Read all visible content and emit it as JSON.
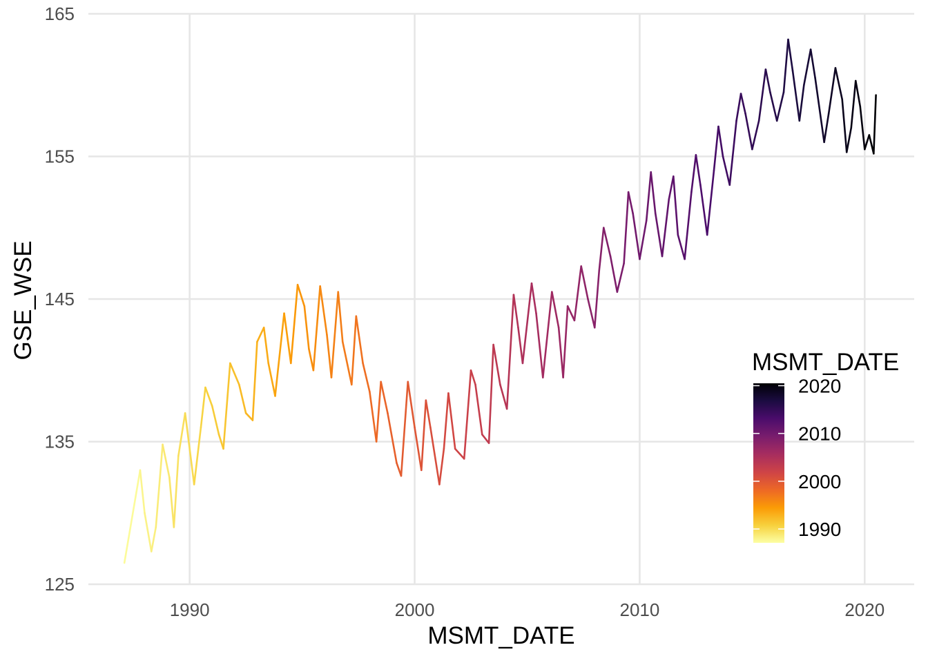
{
  "chart_data": {
    "type": "line",
    "title": "",
    "xlabel": "MSMT_DATE",
    "ylabel": "GSE_WSE",
    "xlim": [
      1985.5,
      2022.2
    ],
    "ylim": [
      125,
      165
    ],
    "x_ticks": [
      1990,
      2000,
      2010,
      2020
    ],
    "y_ticks": [
      125,
      135,
      145,
      155,
      165
    ],
    "x_tick_labels": [
      "1990",
      "2000",
      "2010",
      "2020"
    ],
    "y_tick_labels": [
      "125",
      "135",
      "145",
      "155",
      "165"
    ],
    "grid": true,
    "legend": {
      "title": "MSMT_DATE",
      "type": "colorbar",
      "position": "right",
      "range": [
        1987.1,
        2020.5
      ],
      "ticks": [
        1990,
        2000,
        2010,
        2020
      ],
      "tick_labels": [
        "1990",
        "2000",
        "2010",
        "2020"
      ],
      "colormap": "inferno",
      "colors_low_to_high": [
        "#fcffa4",
        "#f7d13d",
        "#fb9b06",
        "#ed6925",
        "#cf4446",
        "#a52c60",
        "#781c6d",
        "#4a0c6b",
        "#1b0c41",
        "#000004"
      ]
    },
    "series": [
      {
        "name": "GSE_WSE",
        "color_by": "MSMT_DATE",
        "x": [
          1987.1,
          1987.8,
          1988.0,
          1988.3,
          1988.5,
          1988.8,
          1989.1,
          1989.3,
          1989.5,
          1989.8,
          1990.2,
          1990.5,
          1990.7,
          1991.0,
          1991.3,
          1991.5,
          1991.8,
          1992.2,
          1992.5,
          1992.8,
          1993.0,
          1993.3,
          1993.5,
          1993.8,
          1994.2,
          1994.5,
          1994.8,
          1995.1,
          1995.3,
          1995.5,
          1995.8,
          1996.1,
          1996.3,
          1996.6,
          1996.8,
          1997.2,
          1997.4,
          1997.7,
          1998.0,
          1998.3,
          1998.5,
          1998.8,
          1999.2,
          1999.4,
          1999.7,
          2000.0,
          2000.3,
          2000.5,
          2000.7,
          2001.1,
          2001.3,
          2001.5,
          2001.8,
          2002.2,
          2002.5,
          2002.7,
          2003.0,
          2003.3,
          2003.5,
          2003.8,
          2004.1,
          2004.4,
          2004.6,
          2004.8,
          2005.2,
          2005.4,
          2005.7,
          2006.1,
          2006.4,
          2006.6,
          2006.8,
          2007.1,
          2007.4,
          2007.7,
          2008.0,
          2008.2,
          2008.4,
          2008.7,
          2009.0,
          2009.3,
          2009.5,
          2009.7,
          2010.0,
          2010.3,
          2010.5,
          2010.7,
          2011.0,
          2011.3,
          2011.5,
          2011.7,
          2012.0,
          2012.3,
          2012.5,
          2012.7,
          2013.0,
          2013.3,
          2013.5,
          2013.7,
          2014.0,
          2014.3,
          2014.5,
          2014.7,
          2015.0,
          2015.3,
          2015.6,
          2015.8,
          2016.1,
          2016.4,
          2016.6,
          2016.8,
          2017.1,
          2017.3,
          2017.6,
          2017.8,
          2018.2,
          2018.4,
          2018.7,
          2019.0,
          2019.2,
          2019.4,
          2019.6,
          2019.8,
          2020.0,
          2020.2,
          2020.4,
          2020.5
        ],
        "y": [
          126.5,
          133.0,
          130.0,
          127.3,
          129.0,
          134.8,
          132.5,
          129.0,
          134.0,
          137.0,
          132.0,
          136.0,
          138.8,
          137.5,
          135.5,
          134.5,
          140.5,
          139.0,
          137.0,
          136.5,
          142.0,
          143.0,
          140.5,
          138.2,
          144.0,
          140.5,
          146.0,
          144.5,
          141.5,
          140.0,
          145.9,
          142.5,
          139.5,
          145.5,
          142.0,
          139.0,
          143.8,
          140.5,
          138.5,
          135.0,
          139.2,
          137.0,
          133.5,
          132.6,
          139.2,
          136.0,
          133.0,
          137.9,
          136.0,
          132.0,
          134.5,
          138.4,
          134.5,
          133.8,
          140.0,
          139.0,
          135.5,
          134.9,
          141.8,
          139.0,
          137.3,
          145.3,
          143.0,
          140.5,
          146.1,
          144.0,
          139.5,
          145.5,
          143.0,
          139.5,
          144.5,
          143.5,
          147.3,
          145.0,
          143.0,
          147.0,
          150.0,
          148.0,
          145.5,
          147.5,
          152.5,
          151.0,
          147.8,
          150.5,
          153.9,
          151.0,
          148.0,
          152.0,
          153.6,
          149.5,
          147.8,
          152.5,
          155.1,
          153.0,
          149.5,
          154.0,
          157.1,
          155.0,
          153.0,
          157.5,
          159.4,
          158.0,
          155.5,
          157.5,
          161.1,
          159.5,
          157.5,
          159.5,
          163.2,
          161.0,
          157.5,
          160.0,
          162.5,
          160.5,
          156.0,
          158.0,
          161.2,
          159.0,
          155.3,
          157.0,
          160.3,
          158.5,
          155.5,
          156.5,
          155.2,
          159.3
        ]
      }
    ]
  }
}
